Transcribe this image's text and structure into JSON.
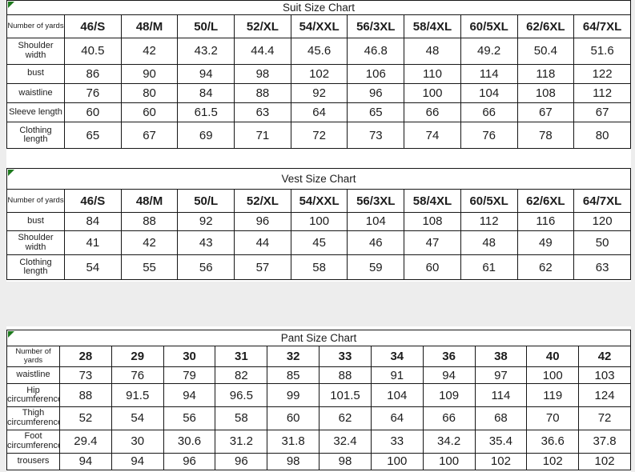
{
  "page": {
    "background_color": "#ededed",
    "panel_color": "#ffffff",
    "border_color": "#161616",
    "corner_marker_color": "#1e7a1e",
    "corner_marker_icon": "excel-error-triangle"
  },
  "tables": [
    {
      "title": "Suit Size Chart",
      "corner_label": "Number of yards",
      "columns": [
        "46/S",
        "48/M",
        "50/L",
        "52/XL",
        "54/XXL",
        "56/3XL",
        "58/4XL",
        "60/5XL",
        "62/6XL",
        "64/7XL"
      ],
      "rows": [
        {
          "label": "Shoulder width",
          "values": [
            "40.5",
            "42",
            "43.2",
            "44.4",
            "45.6",
            "46.8",
            "48",
            "49.2",
            "50.4",
            "51.6"
          ]
        },
        {
          "label": "bust",
          "values": [
            "86",
            "90",
            "94",
            "98",
            "102",
            "106",
            "110",
            "114",
            "118",
            "122"
          ]
        },
        {
          "label": "waistline",
          "values": [
            "76",
            "80",
            "84",
            "88",
            "92",
            "96",
            "100",
            "104",
            "108",
            "112"
          ]
        },
        {
          "label": "Sleeve length",
          "values": [
            "60",
            "60",
            "61.5",
            "63",
            "64",
            "65",
            "66",
            "66",
            "67",
            "67"
          ]
        },
        {
          "label": "Clothing length",
          "values": [
            "65",
            "67",
            "69",
            "71",
            "72",
            "73",
            "74",
            "76",
            "78",
            "80"
          ]
        }
      ]
    },
    {
      "title": "Vest Size Chart",
      "corner_label": "Number of yards",
      "columns": [
        "46/S",
        "48/M",
        "50/L",
        "52/XL",
        "54/XXL",
        "56/3XL",
        "58/4XL",
        "60/5XL",
        "62/6XL",
        "64/7XL"
      ],
      "rows": [
        {
          "label": "bust",
          "values": [
            "84",
            "88",
            "92",
            "96",
            "100",
            "104",
            "108",
            "112",
            "116",
            "120"
          ]
        },
        {
          "label": "Shoulder width",
          "values": [
            "41",
            "42",
            "43",
            "44",
            "45",
            "46",
            "47",
            "48",
            "49",
            "50"
          ]
        },
        {
          "label": "Clothing length",
          "values": [
            "54",
            "55",
            "56",
            "57",
            "58",
            "59",
            "60",
            "61",
            "62",
            "63"
          ]
        }
      ]
    },
    {
      "title": "Pant Size Chart",
      "corner_label": "Number of yards",
      "columns": [
        "28",
        "29",
        "30",
        "31",
        "32",
        "33",
        "34",
        "36",
        "38",
        "40",
        "42"
      ],
      "rows": [
        {
          "label": "waistline",
          "values": [
            "73",
            "76",
            "79",
            "82",
            "85",
            "88",
            "91",
            "94",
            "97",
            "100",
            "103"
          ]
        },
        {
          "label": "Hip circumference",
          "values": [
            "88",
            "91.5",
            "94",
            "96.5",
            "99",
            "101.5",
            "104",
            "109",
            "114",
            "119",
            "124"
          ]
        },
        {
          "label": "Thigh circumference",
          "values": [
            "52",
            "54",
            "56",
            "58",
            "60",
            "62",
            "64",
            "66",
            "68",
            "70",
            "72"
          ]
        },
        {
          "label": "Foot circumference",
          "values": [
            "29.4",
            "30",
            "30.6",
            "31.2",
            "31.8",
            "32.4",
            "33",
            "34.2",
            "35.4",
            "36.6",
            "37.8"
          ]
        },
        {
          "label": "trousers",
          "values": [
            "94",
            "94",
            "96",
            "96",
            "98",
            "98",
            "100",
            "100",
            "102",
            "102",
            "102"
          ]
        }
      ]
    }
  ]
}
